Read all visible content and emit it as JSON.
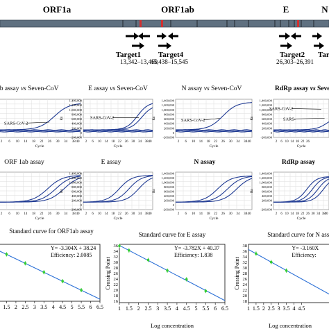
{
  "genome": {
    "labels": [
      "ORF1a",
      "ORF1ab",
      "E",
      "N"
    ],
    "targets": [
      {
        "name": "Target1",
        "range": "13,342–13,460"
      },
      {
        "name": "Target4",
        "range": "15,438–15,545"
      },
      {
        "name": "Target2",
        "range": "26,303–26,391"
      },
      {
        "name": "Tar",
        "range": ""
      }
    ]
  },
  "colors": {
    "curve": "#1f3a93",
    "fit": "#2a6fd6",
    "point": "#33cc33",
    "grid": "#dddddd",
    "genome_bar": "#5f7080"
  },
  "chart_data": [
    {
      "type": "line",
      "title": "ab assay vs Seven-CoV",
      "title_parts": [
        "ab assay ",
        "vs",
        " Seven-CoV"
      ],
      "xlabel": "Cycle",
      "ylabel": "Rn",
      "series": [
        {
          "name": "SARS-CoV-2"
        }
      ],
      "x_ticks": [
        "2",
        "6",
        "10",
        "14",
        "18",
        "22",
        "26",
        "30",
        "34",
        "38",
        "40"
      ],
      "y_ticks": [],
      "grid": true
    },
    {
      "type": "line",
      "title": "E assay vs Seven-CoV",
      "title_parts": [
        "E assay ",
        "vs",
        " Seven-CoV"
      ],
      "xlabel": "Cycle",
      "ylabel": "Rn",
      "series": [
        {
          "name": "SARS-CoV-2"
        }
      ],
      "x_ticks": [
        "2",
        "6",
        "10",
        "14",
        "18",
        "22",
        "26",
        "30",
        "34",
        "38",
        "40"
      ],
      "y_ticks": [
        "1,400,000",
        "1,200,000",
        "1,000,000",
        "800,000",
        "600,000",
        "400,000",
        "200,000",
        "0",
        "-200,000"
      ],
      "ylim": [
        -200000,
        1400000
      ],
      "grid": true
    },
    {
      "type": "line",
      "title": "N assay vs Seven-CoV",
      "title_parts": [
        "N assay ",
        "vs",
        " Seven-CoV"
      ],
      "xlabel": "Cycle",
      "ylabel": "Rn",
      "series": [
        {
          "name": "SARS-CoV-2"
        }
      ],
      "x_ticks": [
        "2",
        "6",
        "10",
        "14",
        "18",
        "22",
        "26",
        "30",
        "34",
        "38",
        "40"
      ],
      "y_ticks": [
        "1,400,000",
        "1,200,000",
        "1,000,000",
        "800,000",
        "600,000",
        "400,000",
        "200,000",
        "0",
        "-200,000"
      ],
      "ylim": [
        -200000,
        1400000
      ],
      "grid": true
    },
    {
      "type": "line",
      "title": "RdRp assay vs Seven-",
      "title_parts": [
        "RdRp assay ",
        "vs",
        " Seven-"
      ],
      "xlabel": "Cycle",
      "ylabel": "Rn",
      "series": [
        {
          "name": "SARS-CoV-2"
        },
        {
          "name": "SARS-"
        }
      ],
      "x_ticks": [
        "2",
        "6",
        "10",
        "14",
        "18",
        "22",
        "26"
      ],
      "y_ticks": [
        "1,400,000",
        "1,200,000",
        "1,000,000",
        "800,000",
        "600,000",
        "400,000",
        "200,000",
        "0",
        "-200,000"
      ],
      "ylim": [
        -200000,
        1400000
      ],
      "grid": true
    },
    {
      "type": "line",
      "title": "ORF 1ab assay",
      "xlabel": "Cycle",
      "ylabel": "Rn",
      "x_ticks": [
        "2",
        "6",
        "10",
        "14",
        "18",
        "22",
        "26",
        "30",
        "34",
        "38",
        "40"
      ],
      "y_ticks": [],
      "grid": true
    },
    {
      "type": "line",
      "title": "E assay",
      "xlabel": "Cycle",
      "ylabel": "Rn",
      "x_ticks": [
        "2",
        "6",
        "10",
        "14",
        "18",
        "22",
        "26",
        "30",
        "34",
        "38",
        "40"
      ],
      "y_ticks": [
        "1,400,000",
        "1,200,000",
        "1,000,000",
        "800,000",
        "600,000",
        "400,000",
        "200,000",
        "0",
        "-200,000"
      ],
      "ylim": [
        -200000,
        1400000
      ],
      "grid": true
    },
    {
      "type": "line",
      "title": "N assay",
      "xlabel": "Cycle",
      "ylabel": "Rn",
      "x_ticks": [
        "2",
        "6",
        "10",
        "14",
        "18",
        "22",
        "26",
        "30",
        "34",
        "38",
        "40"
      ],
      "y_ticks": [
        "1,400,000",
        "1,200,000",
        "1,000,000",
        "800,000",
        "600,000",
        "400,000",
        "200,000",
        "0",
        "-200,000"
      ],
      "ylim": [
        -200000,
        1400000
      ],
      "grid": true
    },
    {
      "type": "line",
      "title": "RdRp assay",
      "xlabel": "Cycle",
      "ylabel": "Rn",
      "x_ticks": [
        "2",
        "6",
        "10",
        "14",
        "18",
        "22",
        "26",
        "30",
        "34",
        "38",
        "40"
      ],
      "y_ticks": [
        "1,400,000",
        "1,200,000",
        "1,000,000",
        "800,000",
        "600,000",
        "400,000",
        "200,000",
        "0",
        "-200,000"
      ],
      "ylim": [
        -200000,
        1400000
      ],
      "grid": true
    },
    {
      "type": "scatter",
      "title": "Standard curve for ORF1ab assay",
      "equation": "Y= -3.304X + 38.24",
      "efficiency": "Efficiency: 2.0085",
      "xlabel": "",
      "ylabel": "",
      "x_ticks": [
        "1",
        "1.5",
        "2",
        "2.5",
        "3",
        "3.5",
        "4",
        "4.5",
        "5",
        "5.5",
        "6",
        "6.5"
      ],
      "y_ticks": [],
      "xlim": [
        1,
        6.5
      ],
      "ylim": [
        16,
        37
      ],
      "fit": {
        "slope": -3.304,
        "intercept": 38.24
      },
      "x": [
        1.5,
        2.5,
        3.5,
        4.5,
        5.5
      ],
      "y": [
        33.3,
        30.0,
        26.7,
        23.4,
        20.1
      ]
    },
    {
      "type": "scatter",
      "title": "Standard curve for E assay",
      "equation": "Y= -3.782X + 40.37",
      "efficiency": "Efficiency: 1.838",
      "xlabel": "Log concentration",
      "ylabel": "Crossing Point",
      "x_ticks": [
        "1",
        "1.5",
        "2",
        "2.5",
        "3",
        "3.5",
        "4",
        "4.5",
        "5",
        "5.5",
        "6",
        "6.5"
      ],
      "y_ticks": [
        "36",
        "34",
        "32",
        "30",
        "28",
        "26",
        "24",
        "22",
        "20",
        "18",
        "16"
      ],
      "xlim": [
        1,
        6.5
      ],
      "ylim": [
        15,
        37
      ],
      "fit": {
        "slope": -3.782,
        "intercept": 40.37
      },
      "x": [
        1,
        1.5,
        2.5,
        3.5,
        4.5,
        5.5
      ],
      "y": [
        36.4,
        34.7,
        31.1,
        27.1,
        23.8,
        19.4
      ]
    },
    {
      "type": "scatter",
      "title": "Standard curve for N assay",
      "equation": "Y= -3.160X",
      "efficiency": "Efficiency:",
      "xlabel": "Log concentration",
      "ylabel": "Crossing Point",
      "x_ticks": [
        "1",
        "1.5",
        "2",
        "2.5",
        "3",
        "3.5",
        "4",
        "4.5"
      ],
      "y_ticks": [
        "38",
        "36",
        "34",
        "32",
        "30",
        "28",
        "26",
        "24",
        "22",
        "20",
        "18"
      ],
      "xlim": [
        1,
        6.5
      ],
      "ylim": [
        17,
        39
      ],
      "fit": {
        "slope": -3.16,
        "intercept": 40.2
      },
      "x": [
        1.5,
        2.5,
        3.5
      ],
      "y": [
        35.5,
        32.3,
        29.1
      ]
    }
  ]
}
